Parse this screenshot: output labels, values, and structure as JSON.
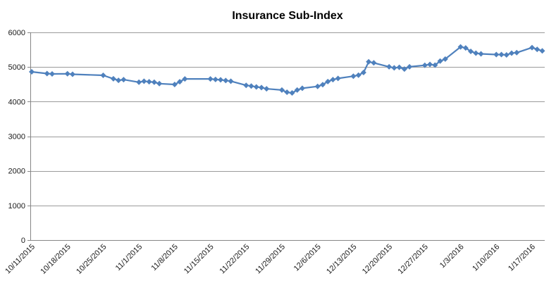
{
  "chart": {
    "title": "Insurance Sub-Index"
  },
  "colors": {
    "line": "#4F81BD",
    "marker": "#4F81BD",
    "gridline": "#9B9B9B",
    "axis": "#868686",
    "title_text": "#000000",
    "tick_label_text": "#1A1A1A",
    "background": "#FFFFFF"
  },
  "chart_data": {
    "type": "line",
    "title": "Insurance Sub-Index",
    "xlabel": "",
    "ylabel": "",
    "ylim": [
      0,
      6000
    ],
    "y_tick_interval": 1000,
    "y_tick_labels": [
      "0",
      "1000",
      "2000",
      "3000",
      "4000",
      "5000",
      "6000"
    ],
    "x_tick_labels": [
      "10/11/2015",
      "10/18/2015",
      "10/25/2015",
      "11/1/2015",
      "11/8/2015",
      "11/15/2015",
      "11/22/2015",
      "11/29/2015",
      "12/6/2015",
      "12/13/2015",
      "12/20/2015",
      "12/27/2015",
      "1/3/2016",
      "1/10/2016",
      "1/17/2016"
    ],
    "grid": "horizontal",
    "legend": "none",
    "marker": "diamond",
    "line_color": "#4F81BD",
    "points": [
      {
        "date": "10/11/2015",
        "value": 4860
      },
      {
        "date": "10/14/2015",
        "value": 4810
      },
      {
        "date": "10/15/2015",
        "value": 4800
      },
      {
        "date": "10/18/2015",
        "value": 4805
      },
      {
        "date": "10/19/2015",
        "value": 4790
      },
      {
        "date": "10/25/2015",
        "value": 4760
      },
      {
        "date": "10/27/2015",
        "value": 4660
      },
      {
        "date": "10/28/2015",
        "value": 4615
      },
      {
        "date": "10/29/2015",
        "value": 4635
      },
      {
        "date": "11/1/2015",
        "value": 4560
      },
      {
        "date": "11/2/2015",
        "value": 4590
      },
      {
        "date": "11/3/2015",
        "value": 4575
      },
      {
        "date": "11/4/2015",
        "value": 4560
      },
      {
        "date": "11/5/2015",
        "value": 4520
      },
      {
        "date": "11/8/2015",
        "value": 4495
      },
      {
        "date": "11/9/2015",
        "value": 4575
      },
      {
        "date": "11/10/2015",
        "value": 4655
      },
      {
        "date": "11/15/2015",
        "value": 4655
      },
      {
        "date": "11/16/2015",
        "value": 4640
      },
      {
        "date": "11/17/2015",
        "value": 4630
      },
      {
        "date": "11/18/2015",
        "value": 4610
      },
      {
        "date": "11/19/2015",
        "value": 4590
      },
      {
        "date": "11/22/2015",
        "value": 4470
      },
      {
        "date": "11/23/2015",
        "value": 4450
      },
      {
        "date": "11/24/2015",
        "value": 4425
      },
      {
        "date": "11/25/2015",
        "value": 4405
      },
      {
        "date": "11/26/2015",
        "value": 4370
      },
      {
        "date": "11/29/2015",
        "value": 4335
      },
      {
        "date": "11/30/2015",
        "value": 4270
      },
      {
        "date": "12/1/2015",
        "value": 4250
      },
      {
        "date": "12/2/2015",
        "value": 4335
      },
      {
        "date": "12/3/2015",
        "value": 4385
      },
      {
        "date": "12/6/2015",
        "value": 4440
      },
      {
        "date": "12/7/2015",
        "value": 4490
      },
      {
        "date": "12/8/2015",
        "value": 4580
      },
      {
        "date": "12/9/2015",
        "value": 4635
      },
      {
        "date": "12/10/2015",
        "value": 4670
      },
      {
        "date": "12/13/2015",
        "value": 4735
      },
      {
        "date": "12/14/2015",
        "value": 4765
      },
      {
        "date": "12/15/2015",
        "value": 4840
      },
      {
        "date": "12/16/2015",
        "value": 5150
      },
      {
        "date": "12/17/2015",
        "value": 5120
      },
      {
        "date": "12/20/2015",
        "value": 5005
      },
      {
        "date": "12/21/2015",
        "value": 4975
      },
      {
        "date": "12/22/2015",
        "value": 4990
      },
      {
        "date": "12/23/2015",
        "value": 4940
      },
      {
        "date": "12/24/2015",
        "value": 5005
      },
      {
        "date": "12/27/2015",
        "value": 5050
      },
      {
        "date": "12/28/2015",
        "value": 5075
      },
      {
        "date": "12/29/2015",
        "value": 5055
      },
      {
        "date": "12/30/2015",
        "value": 5170
      },
      {
        "date": "12/31/2015",
        "value": 5230
      },
      {
        "date": "1/3/2016",
        "value": 5580
      },
      {
        "date": "1/4/2016",
        "value": 5550
      },
      {
        "date": "1/5/2016",
        "value": 5450
      },
      {
        "date": "1/6/2016",
        "value": 5400
      },
      {
        "date": "1/7/2016",
        "value": 5380
      },
      {
        "date": "1/10/2016",
        "value": 5360
      },
      {
        "date": "1/11/2016",
        "value": 5360
      },
      {
        "date": "1/12/2016",
        "value": 5350
      },
      {
        "date": "1/13/2016",
        "value": 5400
      },
      {
        "date": "1/14/2016",
        "value": 5415
      },
      {
        "date": "1/17/2016",
        "value": 5560
      },
      {
        "date": "1/18/2016",
        "value": 5510
      },
      {
        "date": "1/19/2016",
        "value": 5465
      }
    ]
  }
}
